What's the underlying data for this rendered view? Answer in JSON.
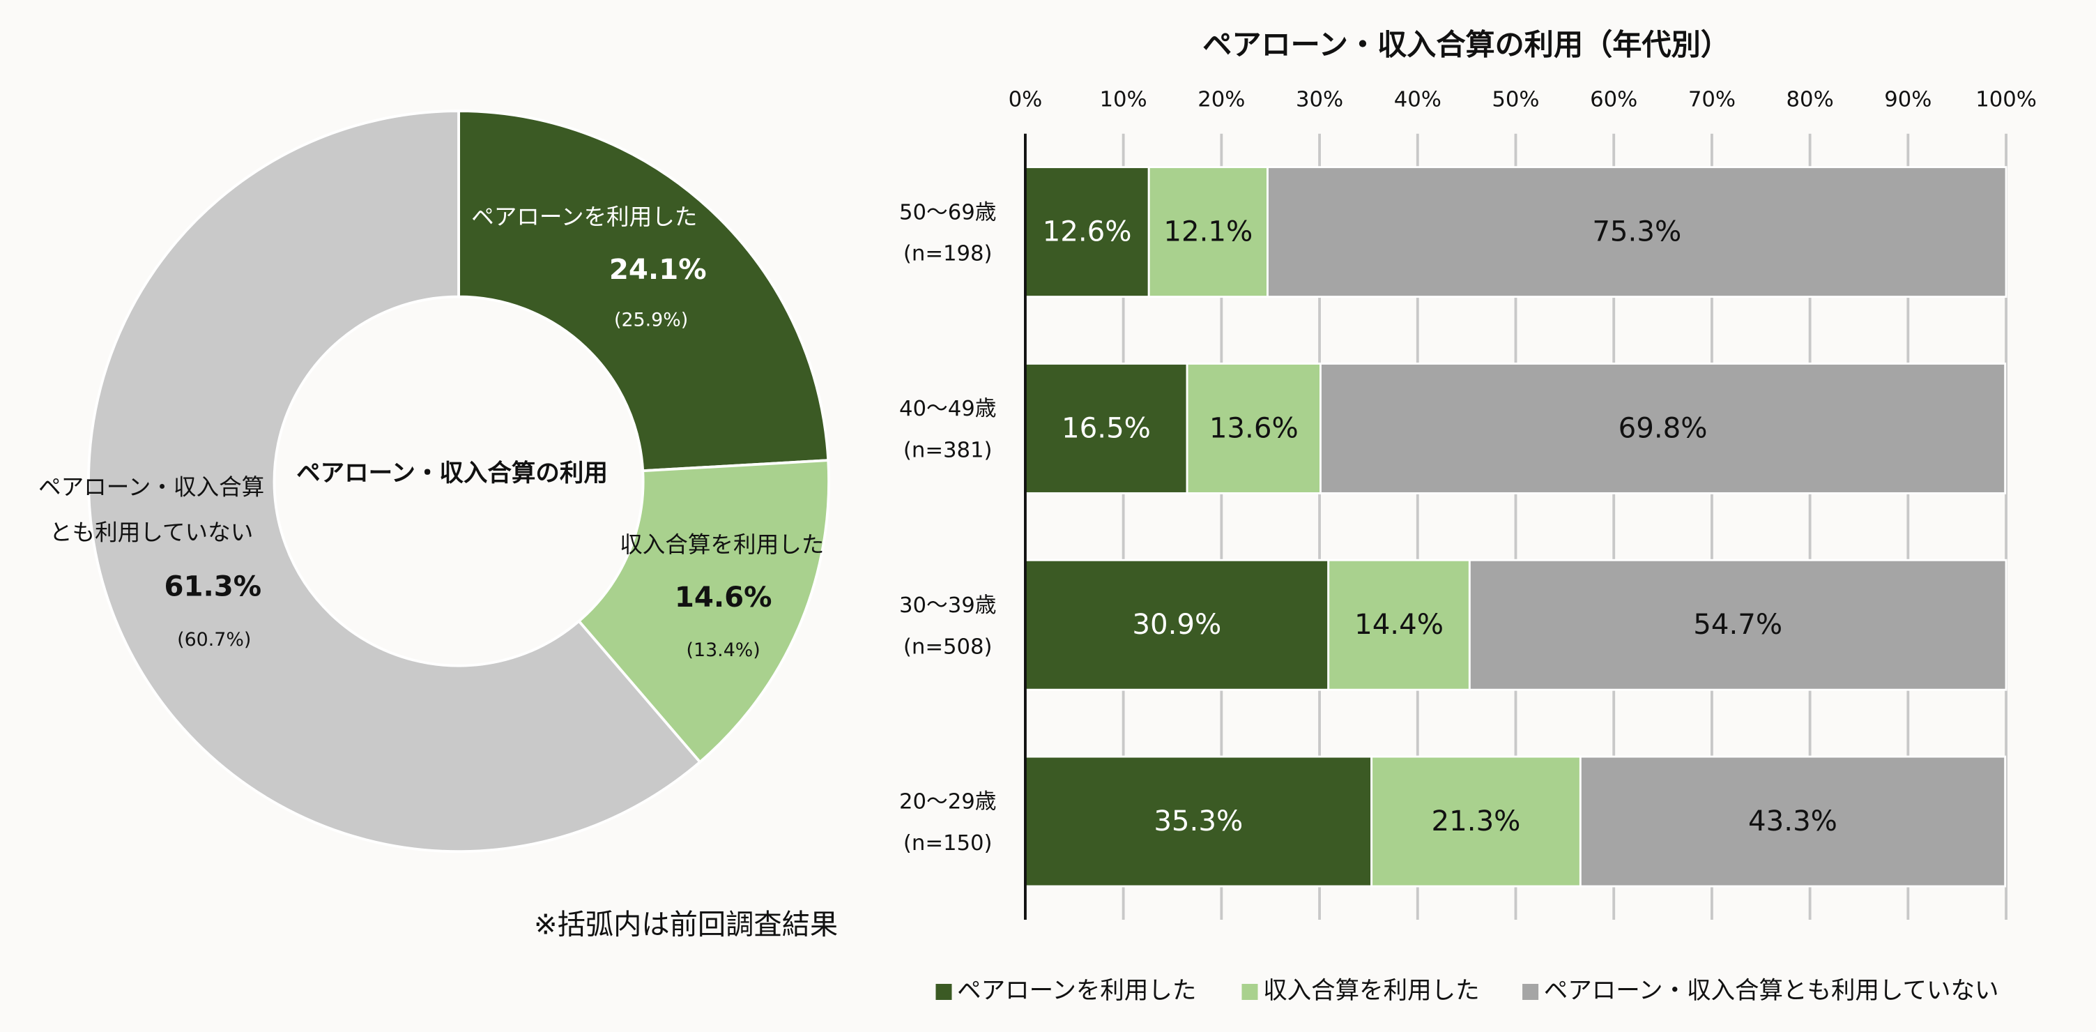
{
  "chart_data": [
    {
      "type": "donut",
      "center_label": "ペアローン・収入合算の利用",
      "categories": [
        "ペアローンを利用した",
        "収入合算を利用した",
        "ペアローン・収入合算とも利用していない"
      ],
      "values": [
        24.1,
        14.6,
        61.3
      ],
      "value_labels": [
        "24.1%",
        "14.6%",
        "61.3%"
      ],
      "previous_values": [
        25.9,
        13.4,
        60.7
      ],
      "previous_value_labels": [
        "(25.9%)",
        "(13.4%)",
        "(60.7%)"
      ],
      "colors": [
        "#3b5a24",
        "#a9d18e",
        "#c9c9c9"
      ],
      "annotation": "※括弧内は前回調査結果"
    },
    {
      "type": "stacked-bar-horizontal",
      "title": "ペアローン・収入合算の利用（年代別）",
      "categories": [
        "50〜69歳",
        "40〜49歳",
        "30〜39歳",
        "20〜29歳"
      ],
      "category_notes": [
        "(n=198)",
        "(n=381)",
        "(n=508)",
        "(n=150)"
      ],
      "series": [
        {
          "name": "ペアローンを利用した",
          "color": "#3b5a24",
          "values": [
            12.6,
            16.5,
            30.9,
            35.3
          ],
          "value_labels": [
            "12.6%",
            "16.5%",
            "30.9%",
            "35.3%"
          ]
        },
        {
          "name": "収入合算を利用した",
          "color": "#a9d18e",
          "values": [
            12.1,
            13.6,
            14.4,
            21.3
          ],
          "value_labels": [
            "12.1%",
            "13.6%",
            "14.4%",
            "21.3%"
          ]
        },
        {
          "name": "ペアローン・収入合算とも利用していない",
          "color": "#a5a5a5",
          "values": [
            75.3,
            69.8,
            54.7,
            43.3
          ],
          "value_labels": [
            "75.3%",
            "69.8%",
            "54.7%",
            "43.3%"
          ]
        }
      ],
      "xlim": [
        0,
        100
      ],
      "xticks": [
        {
          "value": 0,
          "label": "0%"
        },
        {
          "value": 10,
          "label": "10%"
        },
        {
          "value": 20,
          "label": "20%"
        },
        {
          "value": 30,
          "label": "30%"
        },
        {
          "value": 40,
          "label": "40%"
        },
        {
          "value": 50,
          "label": "50%"
        },
        {
          "value": 60,
          "label": "60%"
        },
        {
          "value": 70,
          "label": "70%"
        },
        {
          "value": 80,
          "label": "80%"
        },
        {
          "value": 90,
          "label": "90%"
        },
        {
          "value": 100,
          "label": "100%"
        }
      ],
      "grid": true,
      "legend": "bottom"
    }
  ]
}
